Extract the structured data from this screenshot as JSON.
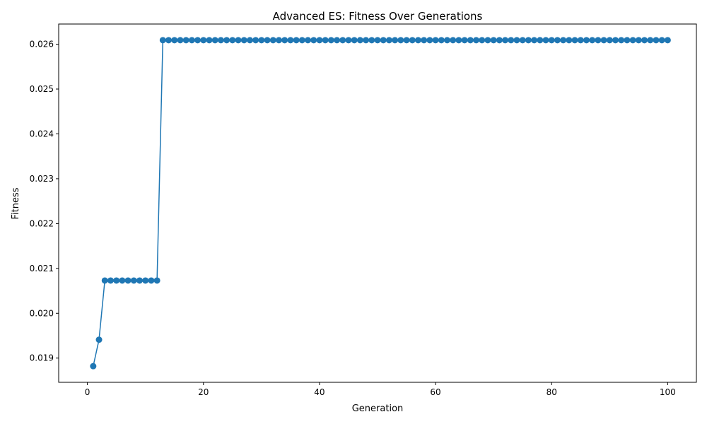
{
  "chart_data": {
    "type": "line",
    "title": "Advanced ES: Fitness Over Generations",
    "xlabel": "Generation",
    "ylabel": "Fitness",
    "xlim": [
      -4.95,
      104.95
    ],
    "ylim": [
      0.01846,
      0.02645
    ],
    "xticks": [
      0,
      20,
      40,
      60,
      80,
      100
    ],
    "xtick_labels": [
      "0",
      "20",
      "40",
      "60",
      "80",
      "100"
    ],
    "yticks": [
      0.019,
      0.02,
      0.021,
      0.022,
      0.023,
      0.024,
      0.025,
      0.026
    ],
    "ytick_labels": [
      "0.019",
      "0.020",
      "0.021",
      "0.022",
      "0.023",
      "0.024",
      "0.025",
      "0.026"
    ],
    "grid": false,
    "marker": "circle",
    "color": "#1f77b4",
    "series": [
      {
        "segments": [
          {
            "from": 1,
            "to": 1,
            "value": 0.01882
          },
          {
            "from": 2,
            "to": 2,
            "value": 0.01941
          },
          {
            "from": 3,
            "to": 12,
            "value": 0.02073
          },
          {
            "from": 13,
            "to": 100,
            "value": 0.02609
          }
        ]
      }
    ]
  }
}
